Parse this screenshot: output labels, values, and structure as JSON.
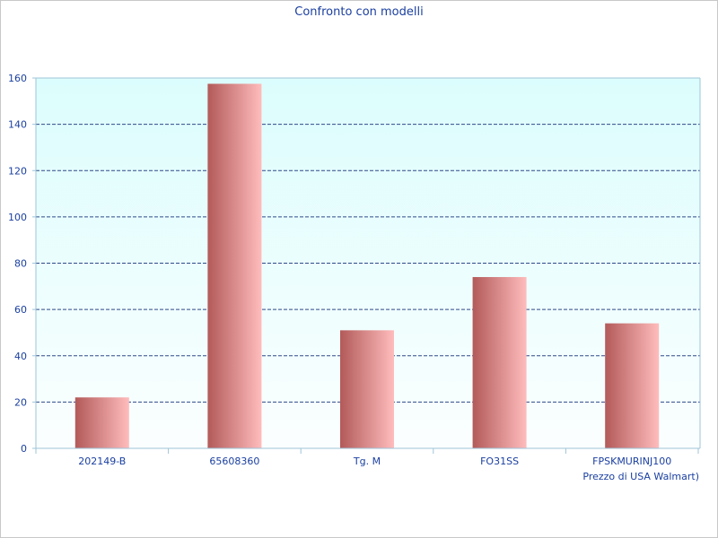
{
  "chart_data": {
    "type": "bar",
    "title": "Confronto con modelli",
    "xlabel": "Prezzo di USA Walmart)",
    "ylabel": "",
    "categories": [
      "202149-B",
      "65608360",
      "Tg. M",
      "FO31SS",
      "FPSKMURINJ100"
    ],
    "values": [
      22,
      157.5,
      51,
      74,
      54
    ],
    "ylim": [
      0,
      160
    ],
    "yticks": [
      0,
      20,
      40,
      60,
      80,
      100,
      120,
      140,
      160
    ],
    "grid": true,
    "legend": "none",
    "colors": {
      "bar_dark": "#b35a5a",
      "bar_light": "#ffbcbc",
      "plot_bg_top": "#dcfdfd",
      "plot_bg_bottom": "#fbfefe",
      "grid": "#2e4a8a",
      "axis": "#9ec4d8",
      "text": "#1a3fa0"
    }
  }
}
